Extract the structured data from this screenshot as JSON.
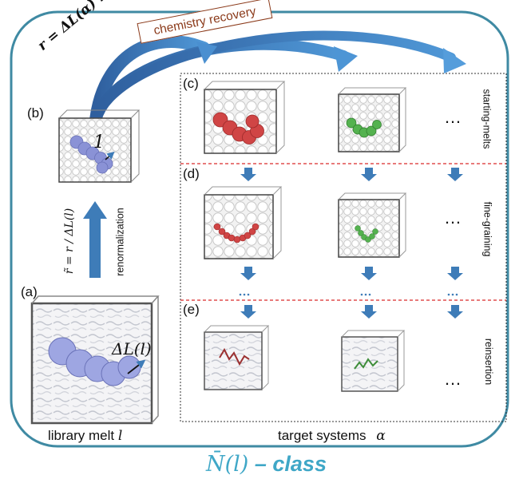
{
  "panels": {
    "a": "(a)",
    "b": "(b)",
    "c": "(c)",
    "d": "(d)",
    "e": "(e)"
  },
  "side_labels": {
    "starting": "starting-melts",
    "fine": "fine-graining",
    "reinsertion": "reinsertion",
    "renorm": "renormalization"
  },
  "chemistry_recovery": "chemistry recovery",
  "equations": {
    "top": "r = ΔL(α) r̃",
    "left": "r̃ = r / ΔL(l)",
    "delta_l": "ΔL(l)",
    "one": "1"
  },
  "bottom": {
    "library_text": "library melt",
    "library_sym": "l",
    "target_text": "target systems",
    "target_sym": "α"
  },
  "class_label": {
    "symbol": "N̄(l)",
    "dash": "–",
    "word": "class"
  },
  "ellipsis": "…",
  "colors": {
    "frame": "#3f8aa3",
    "arrow": "#3e7cb8",
    "chain_red": "#c43b3b",
    "chain_green": "#4ea84a",
    "chain_blue": "#8a92d6",
    "dashed_red": "#d92b2b",
    "class_text": "#3fa7c7"
  }
}
